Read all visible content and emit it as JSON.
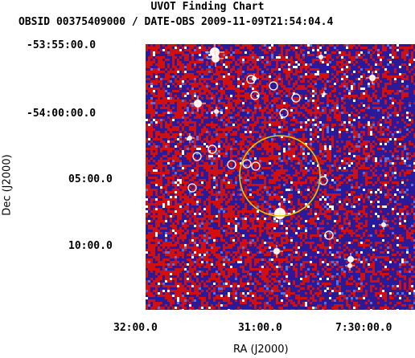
{
  "chart": {
    "title": "UVOT Finding Chart",
    "subtitle": "OBSID 00375409000 / DATE-OBS 2009-11-09T21:54:04.4",
    "dec_label": "Dec (J2000)",
    "ra_label": "RA (J2000)",
    "dec_ticks": [
      "-53:55:00.0",
      "-54:00:00.0",
      "05:00.0",
      "10:00.0"
    ],
    "ra_ticks": [
      "32:00.0",
      "31:00.0",
      "7:30:00.0"
    ]
  },
  "colors": {
    "background_field": "#2a1a9a",
    "noise_red": "#d01010",
    "noise_white": "#ffffff",
    "source_circle": "#ffffff",
    "error_circle": "#e8c800"
  }
}
